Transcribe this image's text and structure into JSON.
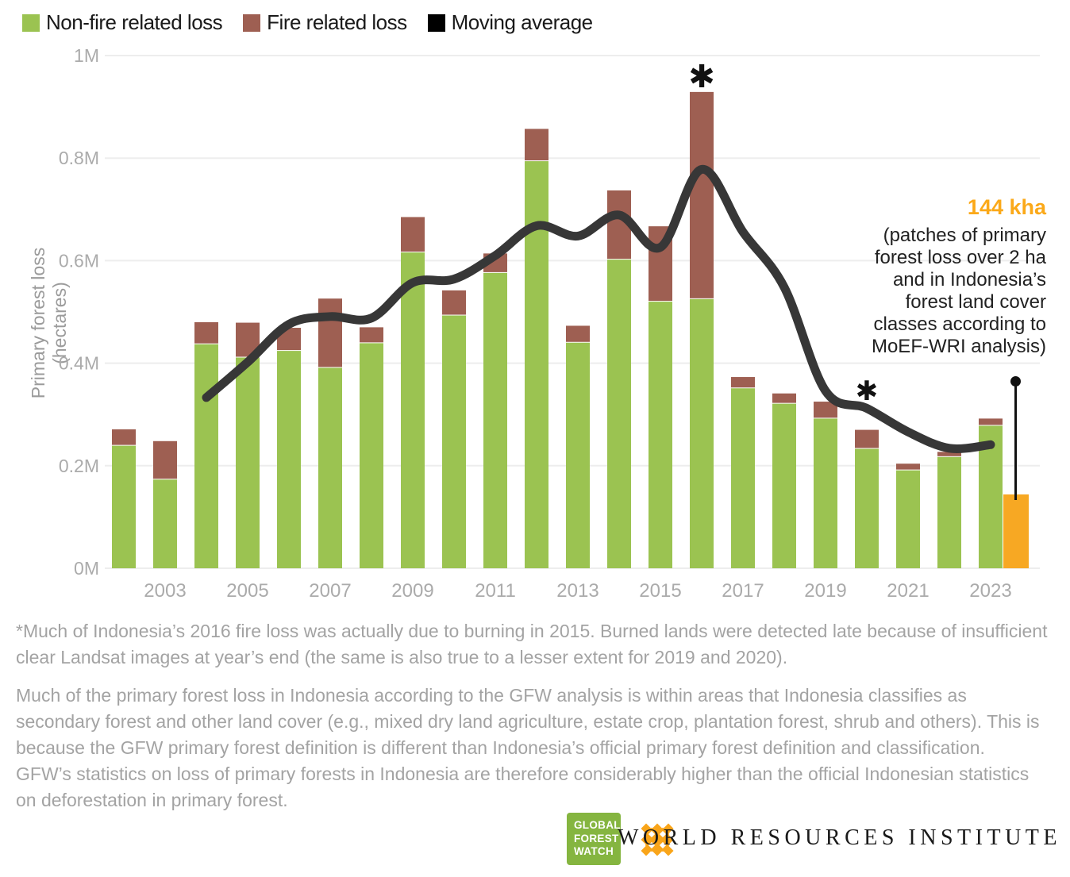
{
  "legend": {
    "items": [
      {
        "label": "Non-fire related loss",
        "color": "#9bc351"
      },
      {
        "label": "Fire related loss",
        "color": "#9e5f52"
      },
      {
        "label": "Moving average",
        "color": "#000000"
      }
    ]
  },
  "annotation": {
    "value": "144 kha",
    "lines": [
      "(patches of primary",
      "forest loss over 2 ha",
      "and in Indonesia’s",
      "forest land cover",
      "classes according to",
      "MoEF-WRI analysis)"
    ]
  },
  "asterisks": [
    {
      "glyph": "✱",
      "year": 2016
    },
    {
      "glyph": "✱",
      "year": 2020
    }
  ],
  "footnotes": {
    "p1_lines": [
      "*Much of Indonesia’s 2016 fire loss was actually due to burning in 2015. Burned lands were detected late because of insufficient",
      "clear Landsat images at year’s end (the same is also true to a lesser extent for 2019 and 2020)."
    ],
    "p2_lines": [
      " Much of the primary forest loss in Indonesia according to the GFW analysis is within areas that Indonesia classifies as",
      "secondary forest and other land cover (e.g., mixed dry land agriculture, estate crop, plantation forest, shrub and others). This is",
      "because the GFW primary forest definition is different than Indonesia’s official primary forest definition and classification.",
      "GFW’s statistics on loss of primary forests in Indonesia are therefore considerably higher than the official Indonesian statistics",
      "on deforestation in primary forest."
    ]
  },
  "logos": {
    "gfw_lines": [
      "GLOBAL",
      "FOREST",
      "WATCH"
    ],
    "wri_wordmark": "WORLD RESOURCES INSTITUTE"
  },
  "chart_data": {
    "type": "bar",
    "title": "",
    "xlabel": "",
    "ylabel": "Primary forest loss (hectares)",
    "ylim_m": [
      0,
      1
    ],
    "grid": true,
    "legend_position": "top-left",
    "categories": [
      2002,
      2003,
      2004,
      2005,
      2006,
      2007,
      2008,
      2009,
      2010,
      2011,
      2012,
      2013,
      2014,
      2015,
      2016,
      2017,
      2018,
      2019,
      2020,
      2021,
      2022,
      2023
    ],
    "series": [
      {
        "name": "Non-fire related loss",
        "color": "#9bc351",
        "unit": "Mha",
        "values_m": [
          0.239,
          0.173,
          0.437,
          0.411,
          0.424,
          0.391,
          0.439,
          0.616,
          0.493,
          0.576,
          0.794,
          0.44,
          0.602,
          0.52,
          0.525,
          0.351,
          0.321,
          0.292,
          0.233,
          0.191,
          0.217,
          0.278
        ]
      },
      {
        "name": "Fire related loss",
        "color": "#9e5f52",
        "unit": "Mha",
        "values_m": [
          0.032,
          0.075,
          0.043,
          0.068,
          0.045,
          0.135,
          0.031,
          0.069,
          0.049,
          0.038,
          0.063,
          0.033,
          0.135,
          0.147,
          0.404,
          0.022,
          0.02,
          0.033,
          0.037,
          0.013,
          0.01,
          0.014
        ]
      }
    ],
    "line_series": {
      "name": "Moving average",
      "color": "#373737",
      "unit": "Mha",
      "values_m": [
        null,
        null,
        0.333,
        0.402,
        0.476,
        0.491,
        0.488,
        0.557,
        0.564,
        0.61,
        0.668,
        0.648,
        0.689,
        0.626,
        0.778,
        0.656,
        0.548,
        0.346,
        0.312,
        0.266,
        0.234,
        0.241
      ]
    },
    "extra_bar": {
      "name": "144 kha (MoEF-WRI analysis)",
      "year": 2023,
      "color": "#f7a823",
      "value_m": 0.144
    },
    "yticks_m": [
      0,
      0.2,
      0.4,
      0.6,
      0.8,
      1
    ],
    "ytick_labels": [
      "0M",
      "0.2M",
      "0.4M",
      "0.6M",
      "0.8M",
      "1M"
    ],
    "xtick_labels": [
      2003,
      2005,
      2007,
      2009,
      2011,
      2013,
      2015,
      2017,
      2019,
      2021,
      2023
    ]
  }
}
